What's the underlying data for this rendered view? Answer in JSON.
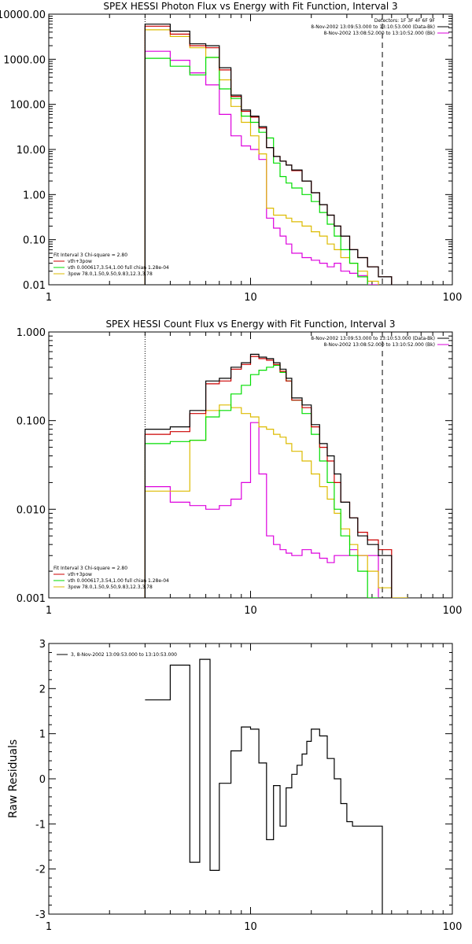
{
  "colors": {
    "total": "#000000",
    "vth_plus_3pow": "#cc0000",
    "vth": "#00dd00",
    "3pow": "#ddbb00",
    "background": "#dd00dd"
  },
  "chart_data": [
    {
      "type": "line",
      "title": "SPEX HESSI Photon Flux vs Energy with Fit Function, Interval 3",
      "xlabel": "",
      "ylabel": "",
      "xscale": "log",
      "yscale": "log",
      "xlim": [
        1,
        100
      ],
      "ylim": [
        0.01,
        10000
      ],
      "xticks": [
        {
          "v": 1,
          "label": "1"
        },
        {
          "v": 10,
          "label": "10"
        },
        {
          "v": 100,
          "label": "100"
        }
      ],
      "yticks": [
        {
          "v": 0.01,
          "label": "0.01"
        },
        {
          "v": 0.1,
          "label": "0.10"
        },
        {
          "v": 1,
          "label": "1.00"
        },
        {
          "v": 10,
          "label": "10.00"
        },
        {
          "v": 100,
          "label": "100.00"
        },
        {
          "v": 1000,
          "label": "1000.00"
        },
        {
          "v": 10000,
          "label": "10000.00"
        }
      ],
      "vlines": [
        {
          "x": 3,
          "style": "dotted"
        },
        {
          "x": 45,
          "style": "dashed"
        }
      ],
      "info_lines": [
        "Detectors: 1F 3F 4F 6F 9F",
        "8-Nov-2002 13:09:53.000 to 13:10:53.000 (Data-Bk)",
        "8-Nov-2002 13:08:52.000 to 13:10:52.000 (Bk)"
      ],
      "fit_legend": {
        "header": "Fit Interval 3   Chi-square = 2.80",
        "entries": [
          "vth+3pow",
          "vth 0.000617,3.54,1.00   full chian 1.28e-04",
          "3pow 78.0,1.50,9.50,9.83,12.3,3.78"
        ]
      },
      "edges": [
        3,
        4,
        5,
        6,
        7,
        8,
        9,
        10,
        11,
        12,
        13,
        14,
        15,
        16,
        18,
        20,
        22,
        24,
        26,
        28,
        31,
        34,
        38,
        43,
        50,
        60
      ],
      "series": [
        {
          "key": "total",
          "name": "",
          "values": [
            6000,
            4200,
            2200,
            2000,
            650,
            160,
            75,
            55,
            32,
            11,
            7,
            5.5,
            4.5,
            3.5,
            2,
            1.1,
            0.6,
            0.35,
            0.2,
            0.12,
            0.06,
            0.04,
            0.025,
            0.015,
            null
          ]
        },
        {
          "key": "vth_plus_3pow",
          "name": "",
          "values": [
            5400,
            3600,
            2000,
            1800,
            580,
            150,
            70,
            52,
            30,
            11,
            7,
            5.5,
            4.5,
            3.4,
            2,
            1.1,
            0.6,
            0.35,
            0.2,
            0.12,
            0.06,
            0.04,
            0.025,
            0.015,
            null
          ]
        },
        {
          "key": "vth",
          "name": "",
          "values": [
            1050,
            700,
            450,
            1100,
            220,
            135,
            55,
            40,
            24,
            18,
            5,
            2.5,
            1.8,
            1.4,
            1.0,
            0.7,
            0.4,
            0.22,
            0.12,
            0.06,
            0.03,
            0.015,
            0.008,
            null,
            null
          ]
        },
        {
          "key": "3pow",
          "name": "",
          "values": [
            4500,
            3200,
            1800,
            1100,
            350,
            90,
            40,
            20,
            8,
            0.5,
            0.35,
            0.35,
            0.3,
            0.25,
            0.2,
            0.15,
            0.12,
            0.08,
            0.06,
            0.04,
            0.03,
            0.02,
            0.012,
            0.008,
            0.006
          ]
        },
        {
          "key": "background",
          "name": "",
          "values": [
            1500,
            950,
            500,
            270,
            60,
            20,
            12,
            10,
            6,
            0.3,
            0.18,
            0.12,
            0.08,
            0.05,
            0.04,
            0.035,
            0.03,
            0.025,
            0.03,
            0.02,
            0.018,
            0.016,
            0.01,
            null,
            null
          ]
        }
      ]
    },
    {
      "type": "line",
      "title": "SPEX HESSI Count Flux vs Energy with Fit Function, Interval 3",
      "xlabel": "",
      "ylabel": "",
      "xscale": "log",
      "yscale": "log",
      "xlim": [
        1,
        100
      ],
      "ylim": [
        0.001,
        1
      ],
      "xticks": [
        {
          "v": 1,
          "label": "1"
        },
        {
          "v": 10,
          "label": "10"
        },
        {
          "v": 100,
          "label": "100"
        }
      ],
      "yticks": [
        {
          "v": 0.001,
          "label": "0.001"
        },
        {
          "v": 0.01,
          "label": "0.010"
        },
        {
          "v": 0.1,
          "label": "0.100"
        },
        {
          "v": 1,
          "label": "1.000"
        }
      ],
      "vlines": [
        {
          "x": 3,
          "style": "dotted"
        },
        {
          "x": 45,
          "style": "dashed"
        }
      ],
      "info_lines": [
        "8-Nov-2002 13:09:53.000 to 13:10:53.000 (Data-Bk)",
        "8-Nov-2002 13:08:52.000 to 13:10:52.000 (Bk)"
      ],
      "fit_legend": {
        "header": "Fit Interval 3   Chi-square = 2.80",
        "entries": [
          "vth+3pow",
          "vth 0.000617,3.54,1.00   full chian 1.28e-04",
          "3pow 78.0,1.50,9.50,9.83,12.3,3.78"
        ]
      },
      "edges": [
        3,
        4,
        5,
        6,
        7,
        8,
        9,
        10,
        11,
        12,
        13,
        14,
        15,
        16,
        18,
        20,
        22,
        24,
        26,
        28,
        31,
        34,
        38,
        43,
        50,
        60
      ],
      "series": [
        {
          "key": "total",
          "name": "",
          "values": [
            0.08,
            0.085,
            0.13,
            0.28,
            0.3,
            0.4,
            0.45,
            0.56,
            0.52,
            0.5,
            0.45,
            0.38,
            0.3,
            0.18,
            0.15,
            0.09,
            0.055,
            0.04,
            0.025,
            0.012,
            0.008,
            0.005,
            0.004,
            0.003,
            null
          ]
        },
        {
          "key": "vth_plus_3pow",
          "name": "",
          "values": [
            0.07,
            0.075,
            0.12,
            0.26,
            0.28,
            0.38,
            0.43,
            0.53,
            0.5,
            0.48,
            0.43,
            0.36,
            0.28,
            0.17,
            0.14,
            0.085,
            0.05,
            0.035,
            0.02,
            0.012,
            0.008,
            0.0055,
            0.0045,
            0.0035,
            null
          ]
        },
        {
          "key": "vth",
          "name": "",
          "values": [
            0.055,
            0.058,
            0.06,
            0.11,
            0.13,
            0.2,
            0.25,
            0.33,
            0.37,
            0.4,
            0.42,
            0.35,
            0.28,
            0.17,
            0.12,
            0.07,
            0.035,
            0.02,
            0.01,
            0.005,
            0.003,
            0.002,
            0.001,
            null,
            null
          ]
        },
        {
          "key": "3pow",
          "name": "",
          "values": [
            0.016,
            0.016,
            0.06,
            0.13,
            0.15,
            0.14,
            0.12,
            0.11,
            0.085,
            0.08,
            0.07,
            0.065,
            0.055,
            0.045,
            0.035,
            0.025,
            0.018,
            0.013,
            0.009,
            0.006,
            0.004,
            0.003,
            0.002,
            0.0013,
            0.001
          ]
        },
        {
          "key": "background",
          "name": "",
          "values": [
            0.018,
            0.012,
            0.011,
            0.01,
            0.011,
            0.013,
            0.02,
            0.095,
            0.025,
            0.005,
            0.004,
            0.0035,
            0.0032,
            0.003,
            0.0035,
            0.0032,
            0.0028,
            0.0025,
            0.003,
            0.003,
            0.0035,
            0.003,
            0.003,
            null,
            null
          ]
        }
      ]
    },
    {
      "type": "line",
      "title": "",
      "xlabel": "",
      "ylabel": "Raw Residuals",
      "xscale": "log",
      "yscale": "linear",
      "xlim": [
        1,
        100
      ],
      "ylim": [
        -3,
        3
      ],
      "xticks": [
        {
          "v": 1,
          "label": "1"
        },
        {
          "v": 10,
          "label": "10"
        },
        {
          "v": 100,
          "label": "100"
        }
      ],
      "yticks": [
        {
          "v": -3,
          "label": "-3"
        },
        {
          "v": -2,
          "label": "-2"
        },
        {
          "v": -1,
          "label": "-1"
        },
        {
          "v": 0,
          "label": "0"
        },
        {
          "v": 1,
          "label": "1"
        },
        {
          "v": 2,
          "label": "2"
        },
        {
          "v": 3,
          "label": "3"
        }
      ],
      "legend_line": "3, 8-Nov-2002 13:09:53.000 to 13:10:53.000",
      "edges": [
        3,
        4,
        5,
        5.6,
        6.3,
        7,
        8,
        9,
        10,
        11,
        12,
        13,
        14,
        15,
        16,
        17,
        18,
        19,
        20,
        22,
        24,
        26,
        28,
        30,
        32,
        35,
        38,
        41,
        45
      ],
      "series": [
        {
          "key": "total",
          "name": "",
          "values": [
            1.75,
            2.52,
            -1.85,
            2.65,
            -2.03,
            -0.1,
            0.62,
            1.15,
            1.1,
            0.35,
            -1.35,
            -0.15,
            -1.05,
            -0.2,
            0.1,
            0.3,
            0.55,
            0.83,
            1.1,
            0.95,
            0.45,
            0,
            -0.55,
            -0.95,
            -1.05,
            -1.05,
            -1.05,
            -1.05
          ]
        }
      ]
    }
  ]
}
